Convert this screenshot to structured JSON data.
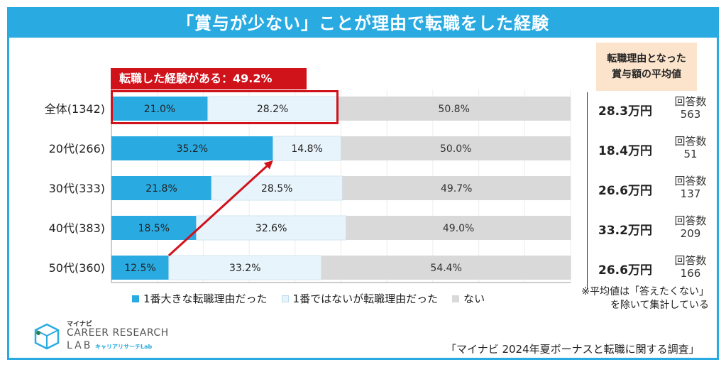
{
  "title": "「賞与が少ない」ことが理由で転職をした経験",
  "callout": "転職した経験がある：49.2%",
  "avg_header": "転職理由となった賞与額の平均値",
  "respondent_label": "回答数",
  "rows": [
    {
      "label": "全体(1342)",
      "amount": "28.3万円",
      "count": "563"
    },
    {
      "label": "20代(266)",
      "amount": "18.4万円",
      "count": "51"
    },
    {
      "label": "30代(333)",
      "amount": "26.6万円",
      "count": "137"
    },
    {
      "label": "40代(383)",
      "amount": "33.2万円",
      "count": "209"
    },
    {
      "label": "50代(360)",
      "amount": "26.6万円",
      "count": "166"
    }
  ],
  "legend": [
    "1番大きな転職理由だった",
    "1番ではないが転職理由だった",
    "ない"
  ],
  "note": "※平均値は「答えたくない」を除いて集計している",
  "logo": {
    "small": "マイナビ",
    "main": "CAREER RESEARCH",
    "lab": "LAB",
    "kana": "キャリアリサーチLab"
  },
  "source": "「マイナビ 2024年夏ボーナスと転職に関する調査」",
  "colors": {
    "primary": "#29abe2",
    "secondary": "#e8f4fb",
    "none": "#d9d9d9",
    "accent": "#d0121b"
  },
  "chart_data": {
    "type": "bar",
    "orientation": "horizontal",
    "stacked": true,
    "categories": [
      "全体(1342)",
      "20代(266)",
      "30代(333)",
      "40代(383)",
      "50代(360)"
    ],
    "series": [
      {
        "name": "1番大きな転職理由だった",
        "values": [
          21.0,
          35.2,
          21.8,
          18.5,
          12.5
        ]
      },
      {
        "name": "1番ではないが転職理由だった",
        "values": [
          28.2,
          14.8,
          28.5,
          32.6,
          33.2
        ]
      },
      {
        "name": "ない",
        "values": [
          50.8,
          50.0,
          49.7,
          49.0,
          54.4
        ]
      }
    ],
    "xlim": [
      0,
      100
    ],
    "legend_position": "bottom"
  }
}
